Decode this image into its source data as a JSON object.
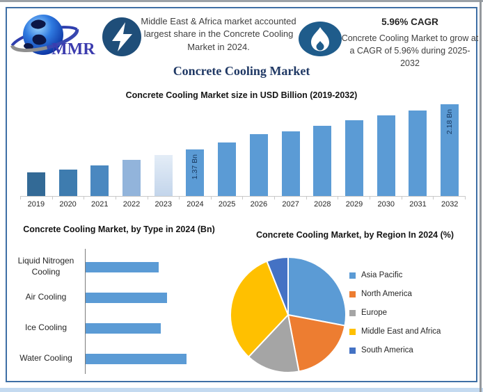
{
  "header": {
    "logo_text": "MMR",
    "left_callout": "Middle East & Africa market accounted largest share in the Concrete Cooling Market in 2024.",
    "cagr_heading": "5.96% CAGR",
    "cagr_body": "Concrete Cooling Market to grow at a CAGR of 5.96% during 2025-2032"
  },
  "main_title": "Concrete Cooling Market",
  "colors": {
    "frame_border": "#3e6fa5",
    "title_navy": "#1f3864",
    "body_text": "#3f3f3f",
    "bar_default": "#5b9bd5",
    "lightning_circle": "#1f4e79",
    "flame_ellipse": "#1f5c8b",
    "axis_line": "#c9c9c9",
    "bar_label_text": "#17375e"
  },
  "chart_data": [
    {
      "type": "bar",
      "title": "Concrete Cooling Market size in USD Billion (2019-2032)",
      "categories": [
        "2019",
        "2020",
        "2021",
        "2022",
        "2023",
        "2024",
        "2025",
        "2026",
        "2027",
        "2028",
        "2029",
        "2030",
        "2031",
        "2032"
      ],
      "values_usd_bn_estimated": [
        1.02,
        1.08,
        1.15,
        1.22,
        1.29,
        1.37,
        1.45,
        1.54,
        1.63,
        1.73,
        1.83,
        1.94,
        2.06,
        2.18
      ],
      "bar_heights_rel": [
        34,
        38,
        44,
        52,
        59,
        67,
        77,
        89,
        93,
        101,
        109,
        116,
        123,
        132
      ],
      "bar_colors": [
        "#336a96",
        "#3e7caf",
        "#4a88c0",
        "#92b4db",
        [
          "#c3d5eb",
          "#e4edf7"
        ],
        "#5b9bd5",
        "#5b9bd5",
        "#5b9bd5",
        "#5b9bd5",
        "#5b9bd5",
        "#5b9bd5",
        "#5b9bd5",
        "#5b9bd5",
        "#5b9bd5"
      ],
      "data_labels": [
        {
          "index": 5,
          "category": "2024",
          "text": "1.37 Bn"
        },
        {
          "index": 13,
          "category": "2032",
          "text": "2.18 Bn"
        }
      ],
      "xlabel": "",
      "ylabel": "",
      "grid": false,
      "y_axis_shown": false
    },
    {
      "type": "bar",
      "orientation": "horizontal",
      "title": "Concrete Cooling Market, by Type in 2024 (Bn)",
      "categories": [
        "Liquid Nitrogen Cooling",
        "Air Cooling",
        "Ice Cooling",
        "Water Cooling"
      ],
      "bar_lengths_rel": [
        105,
        117,
        108,
        145
      ],
      "bar_color": "#5b9bd5",
      "value_labels_shown": false
    },
    {
      "type": "pie",
      "title": "Concrete Cooling Market, by Region In 2024 (%)",
      "slices": [
        {
          "label": "Asia Pacific",
          "value": 28,
          "color": "#5b9bd5"
        },
        {
          "label": "North America",
          "value": 19,
          "color": "#ed7d31"
        },
        {
          "label": "Europe",
          "value": 15,
          "color": "#a5a5a5"
        },
        {
          "label": "Middle East and Africa",
          "value": 32,
          "color": "#ffc000"
        },
        {
          "label": "South America",
          "value": 6,
          "color": "#4472c4"
        }
      ],
      "legend_position": "right",
      "start_angle_deg": 0,
      "direction": "clockwise"
    }
  ]
}
